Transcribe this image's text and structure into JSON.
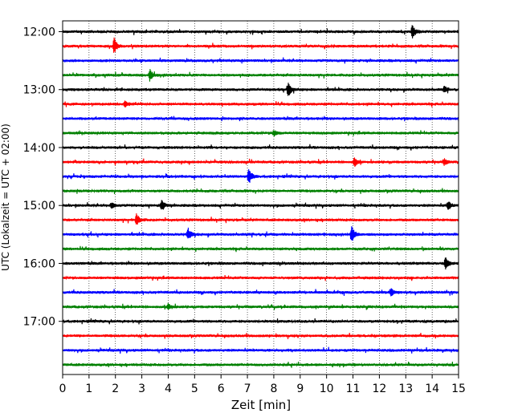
{
  "chart_data": {
    "type": "line",
    "title": "",
    "xlabel": "Zeit  [min]",
    "ylabel": "UTC (Lokalzeit = UTC + 02:00)",
    "xlim": [
      0,
      15
    ],
    "x_ticks": [
      "0",
      "1",
      "2",
      "3",
      "4",
      "5",
      "6",
      "7",
      "8",
      "9",
      "10",
      "11",
      "12",
      "13",
      "14",
      "15"
    ],
    "y_ticks": [
      "12:00",
      "13:00",
      "14:00",
      "15:00",
      "16:00",
      "17:00"
    ],
    "grid": "vertical-dotted",
    "trace_interval_min": 15,
    "colors": [
      "#000000",
      "#ff0000",
      "#0000ff",
      "#008000"
    ],
    "traces": [
      {
        "start": "12:00",
        "events": [
          [
            13.25,
            9
          ]
        ]
      },
      {
        "start": "12:15",
        "events": [
          [
            1.95,
            10
          ]
        ]
      },
      {
        "start": "12:30",
        "events": []
      },
      {
        "start": "12:45",
        "events": [
          [
            3.3,
            8
          ]
        ]
      },
      {
        "start": "13:00",
        "events": [
          [
            8.55,
            11
          ],
          [
            14.45,
            4
          ]
        ]
      },
      {
        "start": "13:15",
        "events": [
          [
            2.35,
            5
          ]
        ]
      },
      {
        "start": "13:30",
        "events": []
      },
      {
        "start": "13:45",
        "events": [
          [
            8.0,
            4
          ]
        ]
      },
      {
        "start": "14:00",
        "events": []
      },
      {
        "start": "14:15",
        "events": [
          [
            11.05,
            6
          ],
          [
            14.45,
            4
          ]
        ]
      },
      {
        "start": "14:30",
        "events": [
          [
            7.05,
            12
          ]
        ]
      },
      {
        "start": "14:45",
        "events": []
      },
      {
        "start": "15:00",
        "events": [
          [
            1.85,
            4
          ],
          [
            3.75,
            7
          ],
          [
            14.6,
            6
          ]
        ]
      },
      {
        "start": "15:15",
        "events": [
          [
            2.8,
            8
          ]
        ]
      },
      {
        "start": "15:30",
        "events": [
          [
            4.75,
            8
          ],
          [
            10.95,
            12
          ]
        ]
      },
      {
        "start": "15:45",
        "events": []
      },
      {
        "start": "16:00",
        "events": [
          [
            14.5,
            9
          ]
        ]
      },
      {
        "start": "16:15",
        "events": []
      },
      {
        "start": "16:30",
        "events": [
          [
            12.45,
            5
          ]
        ]
      },
      {
        "start": "16:45",
        "events": [
          [
            4.0,
            4
          ]
        ]
      },
      {
        "start": "17:00",
        "events": []
      },
      {
        "start": "17:15",
        "events": []
      },
      {
        "start": "17:30",
        "events": []
      },
      {
        "start": "17:45",
        "events": []
      }
    ]
  }
}
